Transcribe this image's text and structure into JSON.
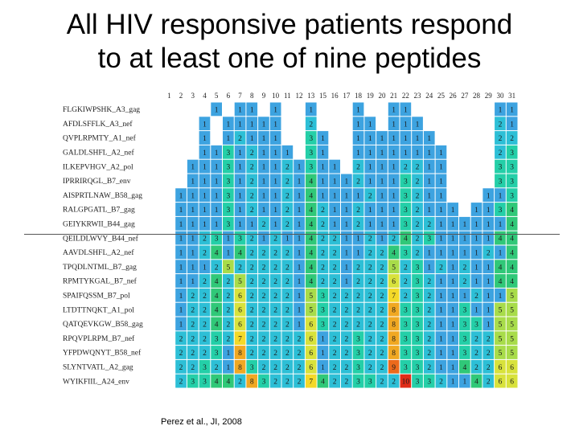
{
  "title": {
    "line1": "All HIV responsive patients respond",
    "line2": "to at least one of nine peptides"
  },
  "citation": "Perez et al., JI, 2008",
  "chart_data": {
    "type": "heatmap",
    "columns": [
      "1",
      "2",
      "3",
      "4",
      "5",
      "6",
      "7",
      "8",
      "9",
      "10",
      "11",
      "12",
      "13",
      "15",
      "16",
      "17",
      "18",
      "19",
      "20",
      "21",
      "22",
      "23",
      "24",
      "25",
      "26",
      "27",
      "28",
      "29",
      "30",
      "31"
    ],
    "rows": [
      {
        "label": "FLGKIWPSHK_A3_gag",
        "values": [
          null,
          null,
          null,
          null,
          1,
          null,
          1,
          1,
          null,
          1,
          null,
          null,
          1,
          null,
          null,
          null,
          1,
          null,
          null,
          1,
          1,
          null,
          null,
          null,
          null,
          null,
          null,
          null,
          1,
          1
        ]
      },
      {
        "label": "AFDLSFFLK_A3_nef",
        "values": [
          null,
          null,
          null,
          1,
          null,
          1,
          1,
          1,
          1,
          1,
          null,
          null,
          2,
          null,
          null,
          null,
          1,
          1,
          null,
          1,
          1,
          1,
          null,
          null,
          null,
          null,
          null,
          null,
          2,
          1
        ]
      },
      {
        "label": "QVPLRPMTY_A1_nef",
        "values": [
          null,
          null,
          null,
          1,
          null,
          1,
          2,
          1,
          1,
          1,
          null,
          null,
          3,
          1,
          null,
          null,
          1,
          1,
          1,
          1,
          1,
          1,
          1,
          null,
          null,
          null,
          null,
          null,
          2,
          2
        ]
      },
      {
        "label": "GALDLSHFL_A2_nef",
        "values": [
          null,
          null,
          null,
          1,
          1,
          3,
          1,
          2,
          1,
          1,
          1,
          null,
          3,
          1,
          null,
          null,
          1,
          1,
          1,
          1,
          1,
          1,
          1,
          1,
          null,
          null,
          null,
          null,
          2,
          3
        ]
      },
      {
        "label": "ILKEPVHGV_A2_pol",
        "values": [
          null,
          null,
          1,
          1,
          1,
          3,
          1,
          2,
          1,
          1,
          2,
          1,
          3,
          1,
          1,
          null,
          2,
          1,
          1,
          1,
          2,
          2,
          1,
          1,
          null,
          null,
          null,
          null,
          3,
          3
        ]
      },
      {
        "label": "IPRRIRQGL_B7_env",
        "values": [
          null,
          null,
          1,
          1,
          1,
          3,
          1,
          2,
          1,
          1,
          2,
          1,
          4,
          1,
          1,
          1,
          2,
          1,
          1,
          1,
          3,
          2,
          1,
          1,
          null,
          null,
          null,
          null,
          3,
          3
        ]
      },
      {
        "label": "AISPRTLNAW_B58_gag",
        "values": [
          null,
          1,
          1,
          1,
          1,
          3,
          1,
          2,
          1,
          1,
          2,
          1,
          4,
          1,
          1,
          1,
          1,
          2,
          1,
          1,
          3,
          2,
          1,
          1,
          null,
          null,
          null,
          1,
          1,
          3
        ]
      },
      {
        "label": "RALGPGATL_B7_gag",
        "values": [
          null,
          1,
          1,
          1,
          1,
          3,
          1,
          2,
          1,
          1,
          2,
          1,
          4,
          2,
          1,
          1,
          2,
          1,
          1,
          1,
          3,
          2,
          1,
          1,
          1,
          null,
          1,
          1,
          3,
          4
        ]
      },
      {
        "label": "GEIYKRWII_B44_gag",
        "values": [
          null,
          1,
          1,
          1,
          1,
          3,
          1,
          1,
          2,
          1,
          2,
          1,
          4,
          2,
          1,
          1,
          2,
          1,
          1,
          1,
          3,
          2,
          2,
          1,
          1,
          1,
          1,
          1,
          1,
          4
        ]
      },
      {
        "label": "QEILDLWVY_B44_nef",
        "values": [
          null,
          1,
          1,
          2,
          3,
          1,
          3,
          2,
          1,
          2,
          1,
          1,
          4,
          2,
          2,
          1,
          1,
          2,
          1,
          2,
          4,
          2,
          3,
          1,
          1,
          1,
          1,
          1,
          4,
          4
        ]
      },
      {
        "label": "AAVDLSHFL_A2_nef",
        "values": [
          null,
          1,
          1,
          2,
          4,
          1,
          4,
          2,
          2,
          2,
          2,
          1,
          4,
          2,
          2,
          1,
          1,
          2,
          2,
          4,
          3,
          2,
          1,
          1,
          1,
          1,
          1,
          2,
          1,
          4
        ]
      },
      {
        "label": "TPQDLNTML_B7_gag",
        "values": [
          null,
          1,
          1,
          1,
          2,
          5,
          2,
          2,
          2,
          2,
          2,
          1,
          4,
          2,
          2,
          1,
          2,
          2,
          2,
          5,
          2,
          3,
          1,
          2,
          1,
          2,
          1,
          1,
          4,
          4
        ]
      },
      {
        "label": "RPMTYKGAL_B7_nef",
        "values": [
          null,
          1,
          1,
          2,
          4,
          2,
          5,
          2,
          2,
          2,
          2,
          1,
          4,
          2,
          2,
          1,
          2,
          2,
          2,
          6,
          2,
          3,
          2,
          1,
          1,
          2,
          1,
          1,
          4,
          4
        ]
      },
      {
        "label": "SPAIFQSSM_B7_pol",
        "values": [
          null,
          1,
          2,
          2,
          4,
          2,
          6,
          2,
          2,
          2,
          2,
          1,
          5,
          3,
          2,
          2,
          2,
          2,
          2,
          7,
          2,
          3,
          2,
          1,
          1,
          1,
          2,
          1,
          1,
          5
        ]
      },
      {
        "label": "LTDTTNQKT_A1_pol",
        "values": [
          null,
          1,
          2,
          2,
          4,
          2,
          6,
          2,
          2,
          2,
          2,
          1,
          5,
          3,
          2,
          2,
          2,
          2,
          2,
          8,
          3,
          3,
          2,
          1,
          1,
          3,
          1,
          1,
          5,
          5
        ]
      },
      {
        "label": "QATQEVKGW_B58_gag",
        "values": [
          null,
          1,
          2,
          2,
          4,
          2,
          6,
          2,
          2,
          2,
          2,
          1,
          6,
          3,
          2,
          2,
          2,
          2,
          2,
          8,
          3,
          3,
          2,
          1,
          1,
          3,
          3,
          1,
          5,
          5
        ]
      },
      {
        "label": "RPQVPLRPM_B7_nef",
        "values": [
          null,
          2,
          2,
          2,
          3,
          2,
          7,
          2,
          2,
          2,
          2,
          2,
          6,
          1,
          2,
          2,
          3,
          2,
          2,
          8,
          3,
          3,
          2,
          1,
          1,
          3,
          2,
          2,
          5,
          5
        ]
      },
      {
        "label": "YFPDWQNYT_B58_nef",
        "values": [
          null,
          2,
          2,
          2,
          3,
          1,
          8,
          2,
          2,
          2,
          2,
          2,
          6,
          1,
          2,
          2,
          3,
          2,
          2,
          8,
          3,
          3,
          2,
          1,
          1,
          3,
          2,
          2,
          5,
          5
        ]
      },
      {
        "label": "SLYNTVATL_A2_gag",
        "values": [
          null,
          2,
          2,
          3,
          2,
          1,
          8,
          3,
          2,
          2,
          2,
          2,
          6,
          1,
          2,
          2,
          3,
          2,
          2,
          9,
          3,
          3,
          2,
          1,
          1,
          4,
          2,
          2,
          6,
          6
        ]
      },
      {
        "label": "WYIKFIIL_A24_env",
        "values": [
          null,
          2,
          3,
          3,
          4,
          4,
          2,
          8,
          3,
          2,
          2,
          2,
          7,
          4,
          2,
          2,
          3,
          3,
          2,
          2,
          10,
          3,
          3,
          2,
          1,
          1,
          4,
          2,
          6,
          6
        ]
      }
    ],
    "palette": {
      "1": "#3da3e0",
      "2": "#2dbfd6",
      "3": "#24cfa8",
      "4": "#30c878",
      "5": "#a8dc4a",
      "6": "#d8e23c",
      "7": "#f4d928",
      "8": "#f0a822",
      "9": "#ec6a1c",
      "10": "#e02c18"
    }
  }
}
